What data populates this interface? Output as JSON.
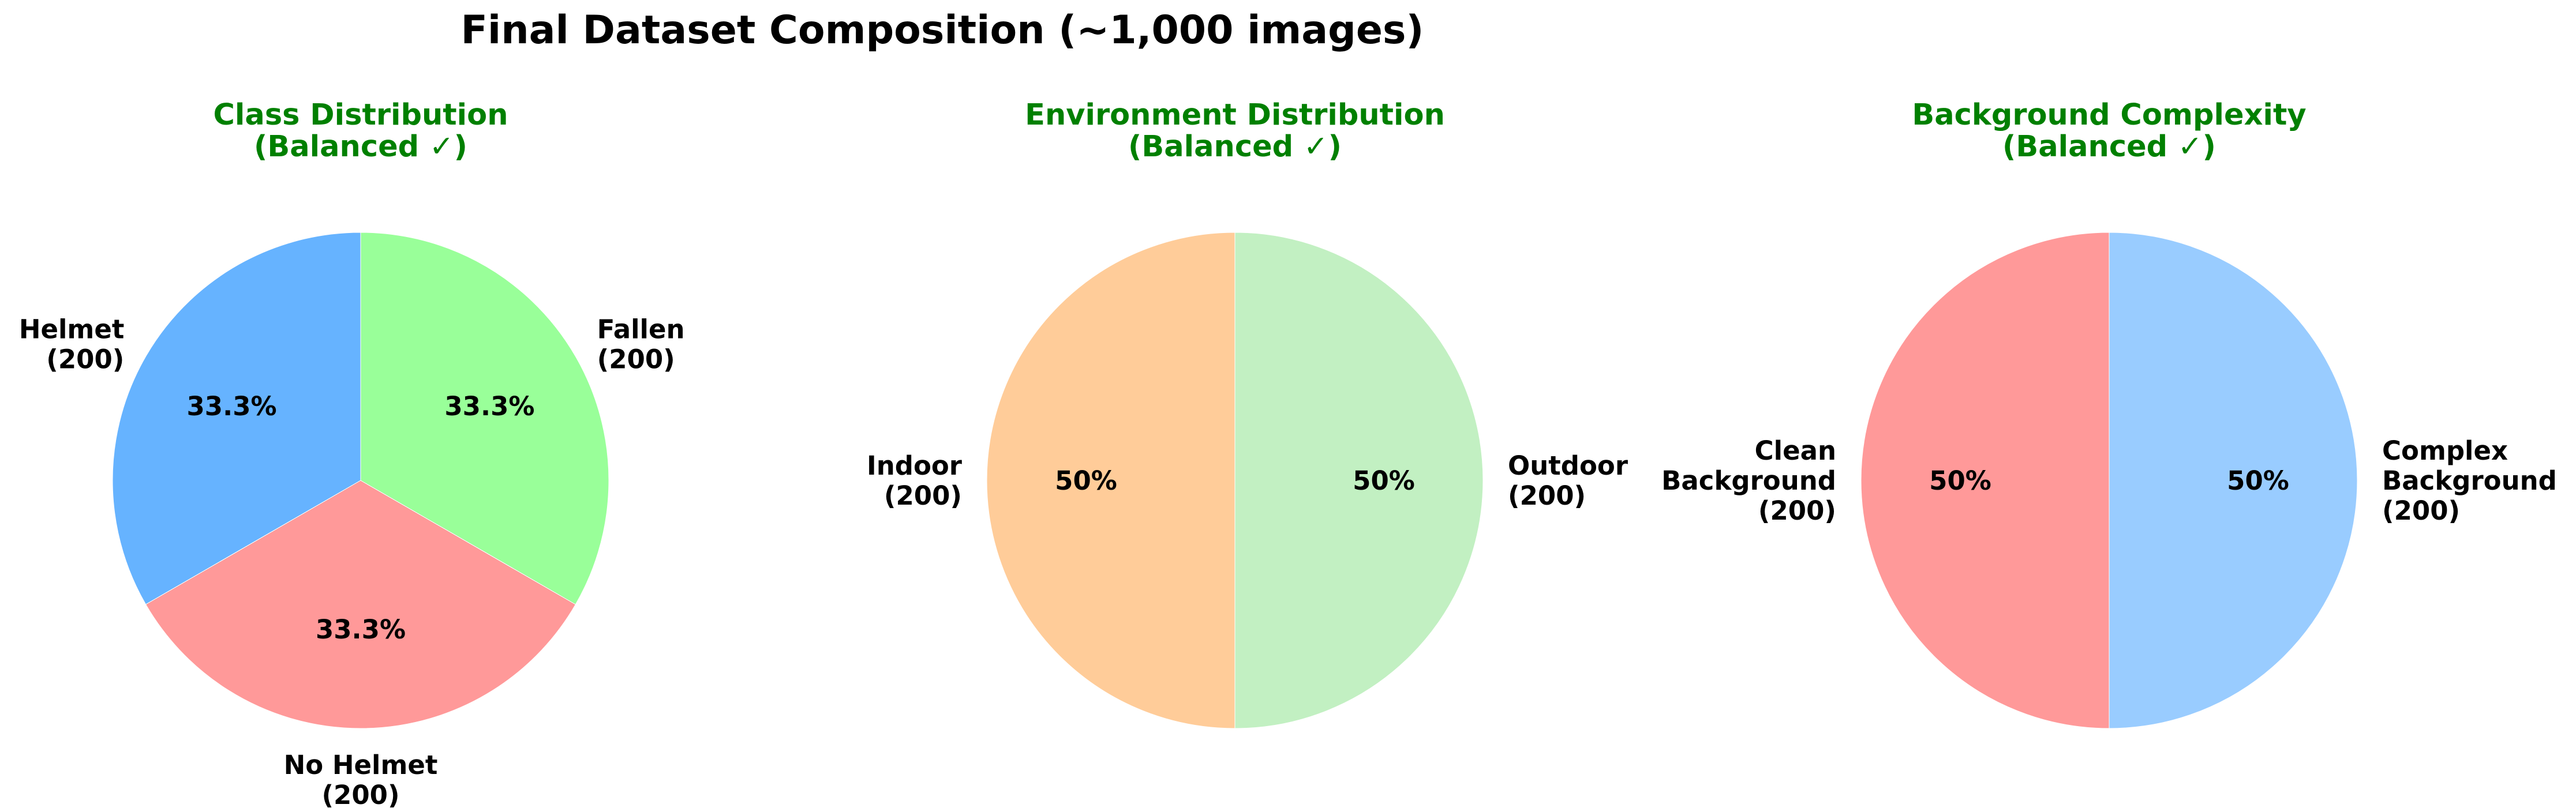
{
  "figure": {
    "title": "Final Dataset Composition (~1,000 images)"
  },
  "colors": {
    "title_text": "#000000",
    "subtitle_text": "#008000",
    "slice_edge": "#ffffff"
  },
  "chart_data": [
    {
      "type": "pie",
      "title": "Class Distribution",
      "subtitle": "(Balanced ✓)",
      "startangle": 90,
      "categories": [
        "Helmet",
        "No Helmet",
        "Fallen"
      ],
      "values": [
        200,
        200,
        200
      ],
      "slice_labels": [
        [
          "Helmet",
          "(200)"
        ],
        [
          "No Helmet",
          "(200)"
        ],
        [
          "Fallen",
          "(200)"
        ]
      ],
      "percent_labels": [
        "33.3%",
        "33.3%",
        "33.3%"
      ],
      "colors": [
        "#66b3ff",
        "#ff9999",
        "#99ff99"
      ]
    },
    {
      "type": "pie",
      "title": "Environment Distribution",
      "subtitle": "(Balanced ✓)",
      "startangle": 90,
      "categories": [
        "Indoor",
        "Outdoor"
      ],
      "values": [
        200,
        200
      ],
      "slice_labels": [
        [
          "Indoor",
          "(200)"
        ],
        [
          "Outdoor",
          "(200)"
        ]
      ],
      "percent_labels": [
        "50%",
        "50%"
      ],
      "colors": [
        "#ffcc99",
        "#c2f0c2"
      ]
    },
    {
      "type": "pie",
      "title": "Background Complexity",
      "subtitle": "(Balanced ✓)",
      "startangle": 90,
      "categories": [
        "Clean Background",
        "Complex Background"
      ],
      "values": [
        200,
        200
      ],
      "slice_labels": [
        [
          "Clean",
          "Background",
          "(200)"
        ],
        [
          "Complex",
          "Background",
          "(200)"
        ]
      ],
      "percent_labels": [
        "50%",
        "50%"
      ],
      "colors": [
        "#ff9999",
        "#99ccff"
      ]
    }
  ]
}
